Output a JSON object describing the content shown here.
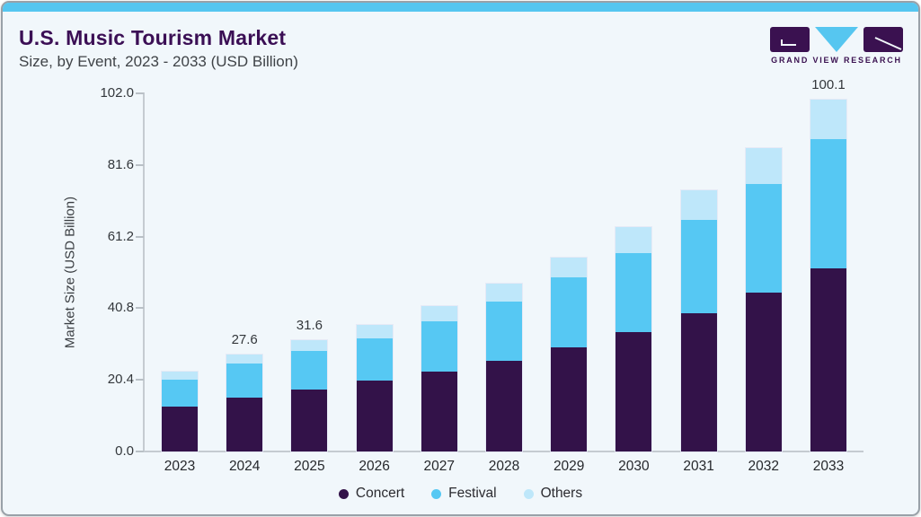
{
  "card": {
    "title": "U.S. Music Tourism Market",
    "subtitle": "Size, by Event, 2023 - 2033 (USD Billion)",
    "brand": {
      "name": "GRAND VIEW RESEARCH"
    }
  },
  "colors": {
    "concert": "#331249",
    "festival": "#56C8F3",
    "others": "#BEE7FA",
    "top_strip": "#55C6F0",
    "title": "#3B0F55",
    "logo_purple": "#3A1150",
    "logo_blue": "#56C6F0",
    "background": "#F1F7FB",
    "axis": "#C5CBD1"
  },
  "chart_data": {
    "type": "bar",
    "stacked": true,
    "title": "U.S. Music Tourism Market Size, by Event, 2023 - 2033 (USD Billion)",
    "xlabel": "",
    "ylabel": "Market Size (USD Billion)",
    "ylim": [
      0,
      102
    ],
    "grid": false,
    "legend_position": "bottom-center",
    "categories": [
      "2023",
      "2024",
      "2025",
      "2026",
      "2027",
      "2028",
      "2029",
      "2030",
      "2031",
      "2032",
      "2033"
    ],
    "series": [
      {
        "name": "Concert",
        "color": "#331249",
        "values": [
          12.7,
          15.3,
          17.7,
          20.1,
          22.8,
          25.9,
          29.6,
          34.1,
          39.4,
          45.2,
          52.1
        ]
      },
      {
        "name": "Festival",
        "color": "#56C8F3",
        "values": [
          7.7,
          9.7,
          11.0,
          12.2,
          14.2,
          16.7,
          19.9,
          22.5,
          26.5,
          31.0,
          36.8
        ]
      },
      {
        "name": "Others",
        "color": "#BEE7FA",
        "values": [
          2.4,
          2.6,
          2.9,
          3.7,
          4.5,
          5.3,
          5.8,
          7.4,
          8.5,
          10.1,
          11.2
        ]
      }
    ],
    "totals": [
      22.8,
      27.6,
      31.6,
      36.0,
      41.5,
      47.9,
      55.3,
      64.0,
      74.4,
      86.3,
      100.1
    ],
    "value_labels": {
      "2024": "27.6",
      "2025": "31.6",
      "2033": "100.1"
    },
    "ytick_labels": [
      "102.0",
      "81.6",
      "61.2",
      "40.8",
      "20.4",
      "0.0"
    ],
    "ytick_values": [
      102.0,
      81.6,
      61.2,
      40.8,
      20.4,
      0.0
    ]
  }
}
